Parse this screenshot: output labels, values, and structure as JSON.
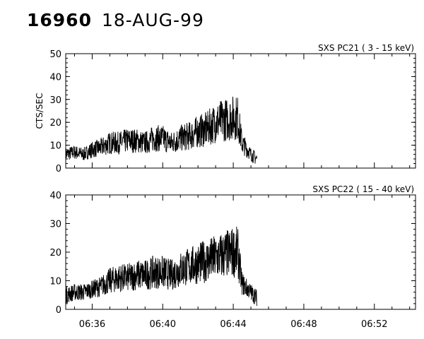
{
  "header": {
    "obs_id": "16960",
    "date": "18-AUG-99"
  },
  "chart_data": [
    {
      "type": "line",
      "title": "SXS PC21  (  3 - 15 keV)",
      "xlabel": "",
      "ylabel": "CTS/SEC",
      "xlim": [
        "06:34:30",
        "06:54:20"
      ],
      "ylim": [
        0,
        50
      ],
      "yticks": [
        "0",
        "10",
        "20",
        "30",
        "40",
        "50"
      ],
      "xticks": [],
      "series": [
        {
          "x": [
            "06:34:30",
            "06:35:00",
            "06:35:30",
            "06:36:00",
            "06:36:30",
            "06:37:00",
            "06:37:30",
            "06:38:00",
            "06:38:30",
            "06:39:00",
            "06:39:30",
            "06:40:00",
            "06:40:30",
            "06:41:00",
            "06:41:30",
            "06:42:00",
            "06:42:30",
            "06:43:00",
            "06:43:30",
            "06:44:00",
            "06:44:15",
            "06:44:30",
            "06:45:00",
            "06:45:20"
          ],
          "y": [
            6,
            7,
            6,
            8,
            9,
            11,
            11,
            12,
            12,
            11,
            13,
            13,
            11,
            13,
            14,
            16,
            17,
            20,
            21,
            22,
            22,
            11,
            6,
            4
          ]
        }
      ]
    },
    {
      "type": "line",
      "title": "SXS PC22  ( 15 - 40 keV)",
      "xlabel": "",
      "ylabel": "",
      "xlim": [
        "06:34:30",
        "06:54:20"
      ],
      "ylim": [
        0,
        40
      ],
      "yticks": [
        "0",
        "10",
        "20",
        "30",
        "40"
      ],
      "xticks": [
        "06:36",
        "06:40",
        "06:44",
        "06:48",
        "06:52"
      ],
      "series": [
        {
          "x": [
            "06:34:30",
            "06:35:00",
            "06:35:30",
            "06:36:00",
            "06:36:30",
            "06:37:00",
            "06:37:30",
            "06:38:00",
            "06:38:30",
            "06:39:00",
            "06:39:30",
            "06:40:00",
            "06:40:30",
            "06:41:00",
            "06:41:30",
            "06:42:00",
            "06:42:30",
            "06:43:00",
            "06:43:30",
            "06:44:00",
            "06:44:15",
            "06:44:30",
            "06:45:00",
            "06:45:20"
          ],
          "y": [
            5,
            6,
            6,
            7,
            8,
            10,
            11,
            11,
            12,
            12,
            13,
            13,
            12,
            14,
            15,
            16,
            17,
            18,
            19,
            20,
            20,
            9,
            6,
            4
          ]
        }
      ]
    }
  ]
}
